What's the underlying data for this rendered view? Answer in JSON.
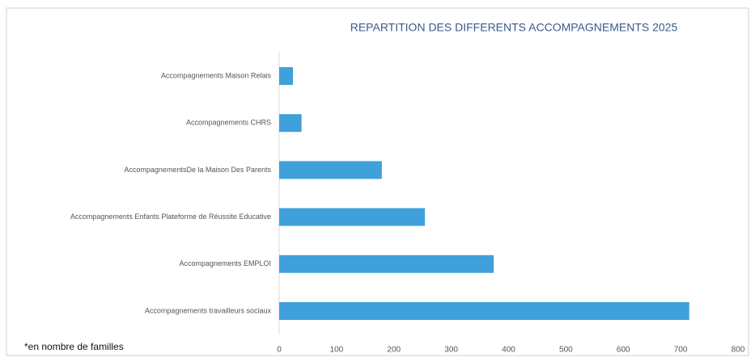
{
  "chart_data": {
    "type": "bar",
    "orientation": "horizontal",
    "title": "REPARTITION DES DIFFERENTS ACCOMPAGNEMENTS 2025",
    "annotation": "*en nombre de familles",
    "categories": [
      "Accompagnements Maison Relais",
      "Accompagnements CHRS",
      "AccompagnementsDe la Maison Des Parents",
      "Accompagnements Enfants Plateforme de Réussite Educative",
      "Accompagnements EMPLOI",
      "Accompagnements travailleurs sociaux"
    ],
    "values": [
      24,
      39,
      179,
      254,
      374,
      715
    ],
    "color": "#3fa0dc",
    "xlim": [
      0,
      800
    ],
    "xticks": [
      0,
      100,
      200,
      300,
      400,
      500,
      600,
      700,
      800
    ],
    "grid": false
  }
}
